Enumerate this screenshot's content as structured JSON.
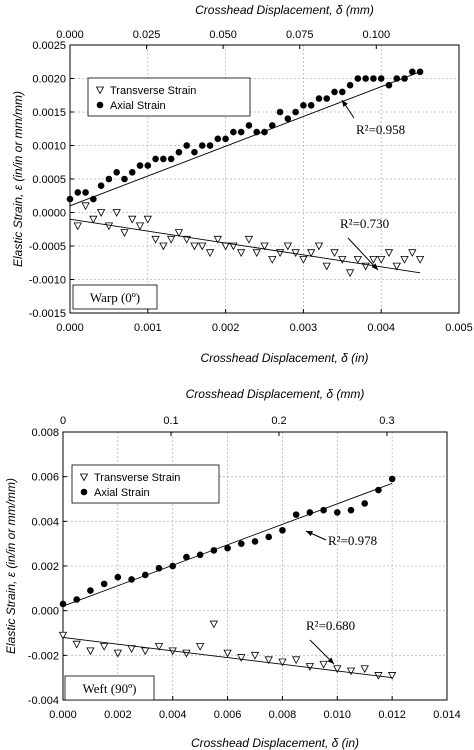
{
  "chart_data": [
    {
      "type": "scatter",
      "title": "",
      "xlabel": "Crosshead Displacement, δ (in)",
      "x2label": "Crosshead Displacement, δ (mm)",
      "ylabel": "Elastic Strain, ε (in/in or mm/mm)",
      "xlim": [
        0,
        0.005
      ],
      "x2lim": [
        0,
        0.127
      ],
      "ylim": [
        -0.0015,
        0.0025
      ],
      "xticks": [
        "0.000",
        "0.001",
        "0.002",
        "0.003",
        "0.004",
        "0.005"
      ],
      "x2ticks": [
        "0.000",
        "0.025",
        "0.050",
        "0.075",
        "0.100"
      ],
      "yticks": [
        "-0.0015",
        "-0.0010",
        "-0.0005",
        "0.0000",
        "0.0005",
        "0.0010",
        "0.0015",
        "0.0020",
        "0.0025"
      ],
      "grid": true,
      "legend_position": "top-left",
      "label_box": "Warp (0º)",
      "series": [
        {
          "name": "Transverse Strain",
          "marker": "triangle-down",
          "x": [
            0.0001,
            0.0002,
            0.0003,
            0.0004,
            0.0005,
            0.0006,
            0.0007,
            0.0008,
            0.0009,
            0.001,
            0.0011,
            0.0012,
            0.0013,
            0.0014,
            0.0015,
            0.0016,
            0.0017,
            0.0018,
            0.0019,
            0.002,
            0.0021,
            0.0022,
            0.0023,
            0.0024,
            0.0025,
            0.0026,
            0.0027,
            0.0028,
            0.0029,
            0.003,
            0.0031,
            0.0032,
            0.0033,
            0.0034,
            0.0035,
            0.0036,
            0.0037,
            0.0038,
            0.0039,
            0.004,
            0.0041,
            0.0042,
            0.0043,
            0.0044,
            0.0045
          ],
          "y": [
            -0.0002,
            0.0001,
            -0.0001,
            0.0,
            -0.0002,
            0.0,
            -0.0003,
            -0.0001,
            -0.0002,
            -0.0001,
            -0.0004,
            -0.0005,
            -0.0004,
            -0.0003,
            -0.0004,
            -0.0005,
            -0.0005,
            -0.0006,
            -0.0004,
            -0.0005,
            -0.0005,
            -0.0006,
            -0.0004,
            -0.0006,
            -0.0005,
            -0.0007,
            -0.0006,
            -0.0005,
            -0.0006,
            -0.0007,
            -0.0006,
            -0.0005,
            -0.0008,
            -0.0006,
            -0.0007,
            -0.0009,
            -0.0007,
            -0.0008,
            -0.0007,
            -0.0007,
            -0.0006,
            -0.0008,
            -0.0007,
            -0.0006,
            -0.0007
          ],
          "fit": {
            "x": [
              0.0,
              0.0045
            ],
            "y": [
              -0.0001,
              -0.0009
            ]
          },
          "r2_label": "R²=0.730"
        },
        {
          "name": "Axial Strain",
          "marker": "circle-filled",
          "x": [
            0.0,
            0.0001,
            0.0002,
            0.0003,
            0.0004,
            0.0005,
            0.0006,
            0.0007,
            0.0008,
            0.0009,
            0.001,
            0.0011,
            0.0012,
            0.0013,
            0.0014,
            0.0015,
            0.0016,
            0.0017,
            0.0018,
            0.0019,
            0.002,
            0.0021,
            0.0022,
            0.0023,
            0.0024,
            0.0025,
            0.0026,
            0.0027,
            0.0028,
            0.0029,
            0.003,
            0.0031,
            0.0032,
            0.0033,
            0.0034,
            0.0035,
            0.0036,
            0.0037,
            0.0038,
            0.0039,
            0.004,
            0.0041,
            0.0042,
            0.0043,
            0.0044,
            0.0045
          ],
          "y": [
            0.0002,
            0.0003,
            0.0003,
            0.0002,
            0.0004,
            0.0005,
            0.0006,
            0.0005,
            0.0006,
            0.0007,
            0.0007,
            0.0008,
            0.0008,
            0.0008,
            0.0009,
            0.001,
            0.0009,
            0.001,
            0.001,
            0.0011,
            0.0011,
            0.0012,
            0.0012,
            0.0013,
            0.0012,
            0.0012,
            0.0013,
            0.0015,
            0.0014,
            0.0015,
            0.0016,
            0.0016,
            0.0017,
            0.0017,
            0.0018,
            0.0018,
            0.0019,
            0.002,
            0.002,
            0.002,
            0.002,
            0.0019,
            0.002,
            0.002,
            0.0021,
            0.0021
          ],
          "fit": {
            "x": [
              0.0,
              0.0045
            ],
            "y": [
              0.0001,
              0.0021
            ]
          },
          "r2_label": "R²=0.958"
        }
      ]
    },
    {
      "type": "scatter",
      "title": "",
      "xlabel": "Crosshead Displacement, δ (in)",
      "x2label": "Crosshead Displacement, δ (mm)",
      "ylabel": "Elastic Strain, ε (in/in or mm/mm)",
      "xlim": [
        0,
        0.014
      ],
      "x2lim": [
        0,
        0.3556
      ],
      "ylim": [
        -0.004,
        0.008
      ],
      "xticks": [
        "0.000",
        "0.002",
        "0.004",
        "0.006",
        "0.008",
        "0.010",
        "0.012",
        "0.014"
      ],
      "x2ticks": [
        "0",
        "0.1",
        "0.2",
        "0.3"
      ],
      "yticks": [
        "-0.004",
        "-0.002",
        "0.000",
        "0.002",
        "0.004",
        "0.006",
        "0.008"
      ],
      "grid": true,
      "legend_position": "top-left",
      "label_box": "Weft (90º)",
      "series": [
        {
          "name": "Transverse Strain",
          "marker": "triangle-down",
          "x": [
            0.0,
            0.0005,
            0.001,
            0.0015,
            0.002,
            0.0025,
            0.003,
            0.0035,
            0.004,
            0.0045,
            0.005,
            0.0055,
            0.006,
            0.0065,
            0.007,
            0.0075,
            0.008,
            0.0085,
            0.009,
            0.0095,
            0.01,
            0.0105,
            0.011,
            0.0115,
            0.012
          ],
          "y": [
            -0.0011,
            -0.0015,
            -0.0018,
            -0.0016,
            -0.0019,
            -0.0017,
            -0.0018,
            -0.0016,
            -0.0018,
            -0.0019,
            -0.0016,
            -0.0006,
            -0.0019,
            -0.0021,
            -0.002,
            -0.0022,
            -0.0023,
            -0.0022,
            -0.0025,
            -0.0024,
            -0.0026,
            -0.0027,
            -0.0026,
            -0.0029,
            -0.0029
          ],
          "fit": {
            "x": [
              0.0,
              0.012
            ],
            "y": [
              -0.0012,
              -0.003
            ]
          },
          "r2_label": "R²=0.680"
        },
        {
          "name": "Axial Strain",
          "marker": "circle-filled",
          "x": [
            0.0,
            0.0005,
            0.001,
            0.0015,
            0.002,
            0.0025,
            0.003,
            0.0035,
            0.004,
            0.0045,
            0.005,
            0.0055,
            0.006,
            0.0065,
            0.007,
            0.0075,
            0.008,
            0.0085,
            0.009,
            0.0095,
            0.01,
            0.0105,
            0.011,
            0.0115,
            0.012
          ],
          "y": [
            0.0003,
            0.0005,
            0.0009,
            0.0012,
            0.0015,
            0.0014,
            0.0016,
            0.0019,
            0.002,
            0.0024,
            0.0025,
            0.0027,
            0.0028,
            0.003,
            0.0031,
            0.0033,
            0.0036,
            0.0043,
            0.0044,
            0.0045,
            0.0044,
            0.0045,
            0.0048,
            0.0054,
            0.0059
          ],
          "fit": {
            "x": [
              0.0,
              0.012
            ],
            "y": [
              0.0002,
              0.0057
            ]
          },
          "r2_label": "R²=0.978"
        }
      ]
    }
  ]
}
